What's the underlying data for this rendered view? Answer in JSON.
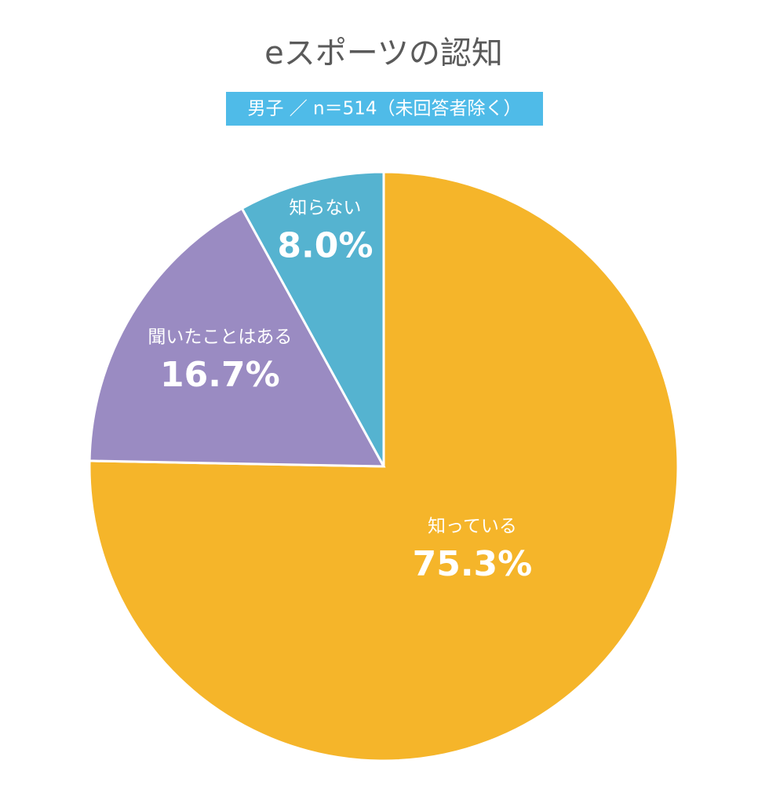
{
  "chart_data": {
    "type": "pie",
    "title": "eスポーツの認知",
    "subtitle": "男子 ／ n＝514（未回答者除く）",
    "categories": [
      "知っている",
      "聞いたことはある",
      "知らない"
    ],
    "values": [
      75.3,
      16.7,
      8.0
    ],
    "value_labels": [
      "75.3%",
      "16.7%",
      "8.0%"
    ],
    "colors": [
      "#f5b52a",
      "#9a8bc2",
      "#55b3d0"
    ]
  }
}
